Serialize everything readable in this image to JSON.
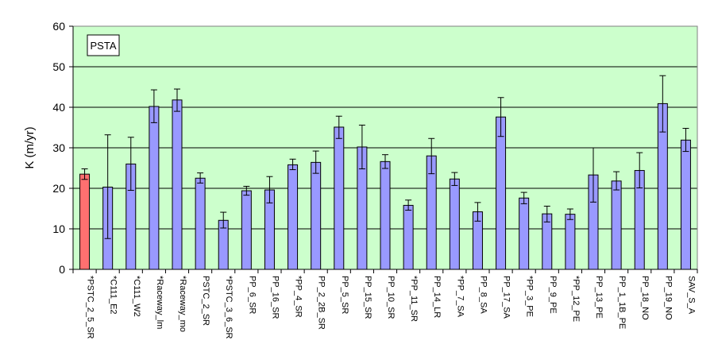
{
  "chart_data": {
    "type": "bar",
    "ylabel": "K (m/yr)",
    "ylim": [
      0,
      60
    ],
    "yticks": [
      0,
      10,
      20,
      30,
      40,
      50,
      60
    ],
    "grid": true,
    "legend_label": "PSTA",
    "legend_placement": "top-left",
    "colors": {
      "plot_bg": "#ccffcc",
      "bar": "#9999ff",
      "bar_highlight": "#ff7070",
      "bar_border": "#000000",
      "grid": "#000000"
    },
    "categories": [
      "*PSTC_2_5_SR",
      "*C111_E2",
      "*C111_W2",
      "*Raceway_lm",
      "*Raceway_mo",
      "PSTC_2_SR",
      "*PSTC_3_6_SR",
      "PP_6_SR",
      "PP_16_SR",
      "*PP_4_SR",
      "PP_2_2B_SR",
      "PP_5_SR",
      "PP_15_SR",
      "PP_10_SR",
      "*PP_11_SR",
      "PP_14_LR",
      "*PP_7_SA",
      "PP_8_SA",
      "PP_17_SA",
      "*PP_3_PE",
      "PP_9_PE",
      "*PP_12_PE",
      "PP_13_PE",
      "PP_1_1B_PE",
      "PP_18_NO",
      "PP_19_NO",
      "SAV_S_A"
    ],
    "values": [
      23.5,
      20.3,
      26.0,
      40.2,
      41.8,
      22.5,
      12.1,
      19.4,
      19.6,
      25.8,
      26.4,
      35.1,
      30.2,
      26.6,
      15.8,
      28.0,
      22.3,
      14.2,
      37.6,
      17.6,
      13.7,
      13.6,
      23.3,
      21.8,
      24.4,
      40.9,
      31.9
    ],
    "error_upper": [
      24.8,
      33.2,
      32.6,
      44.3,
      44.5,
      23.8,
      14.1,
      20.5,
      22.9,
      27.2,
      29.2,
      37.8,
      35.6,
      28.3,
      17.1,
      32.3,
      23.9,
      16.5,
      42.4,
      19.0,
      15.6,
      14.9,
      30.0,
      24.1,
      28.8,
      47.8,
      34.8
    ],
    "error_lower": [
      22.2,
      7.6,
      19.5,
      36.2,
      39.0,
      21.3,
      10.2,
      18.3,
      16.4,
      24.6,
      23.7,
      32.3,
      24.8,
      24.9,
      14.6,
      23.6,
      20.7,
      11.9,
      32.8,
      16.2,
      11.7,
      12.3,
      16.6,
      19.6,
      20.1,
      33.9,
      29.1
    ],
    "highlight_index": 0
  }
}
